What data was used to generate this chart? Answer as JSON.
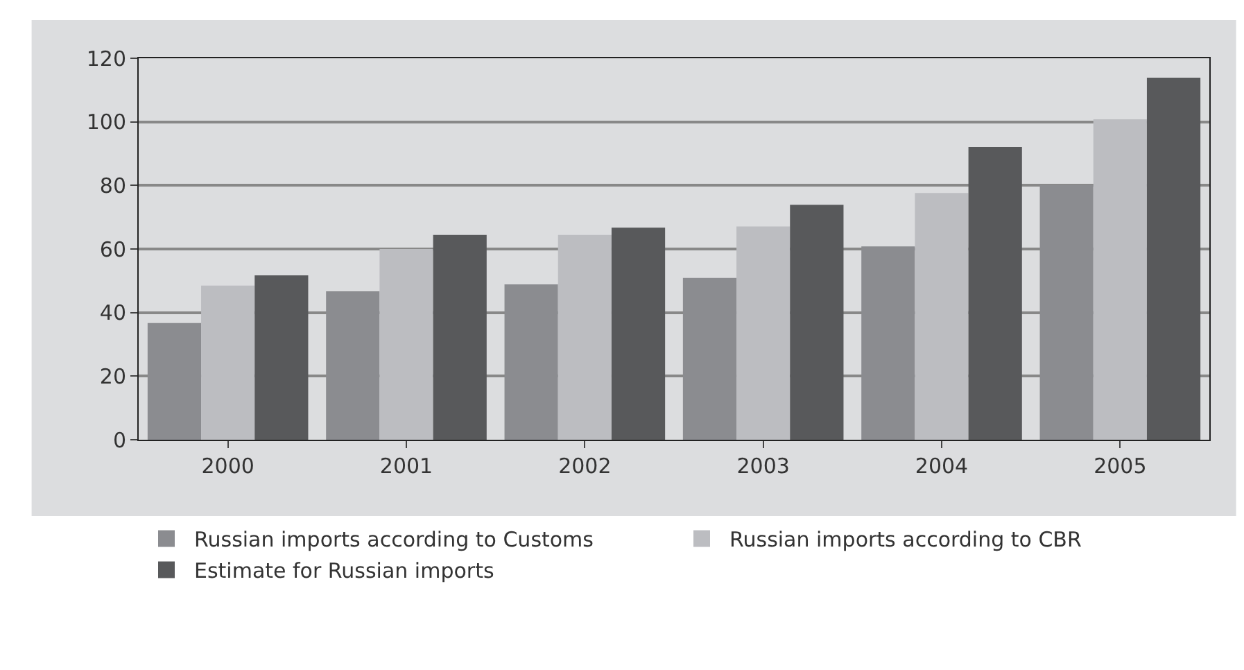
{
  "chart_data": {
    "type": "bar",
    "categories": [
      "2000",
      "2001",
      "2002",
      "2003",
      "2004",
      "2005"
    ],
    "series": [
      {
        "name": "Russian imports according to Customs",
        "color": "#8b8c90",
        "values": [
          36.7,
          46.7,
          48.9,
          50.9,
          60.8,
          80.2
        ]
      },
      {
        "name": "Russian imports according to CBR",
        "color": "#bcbdc1",
        "values": [
          48.5,
          60.0,
          64.4,
          67.1,
          77.6,
          100.8
        ]
      },
      {
        "name": "Estimate for Russian imports",
        "color": "#58595b",
        "values": [
          51.7,
          64.4,
          66.7,
          73.9,
          92.1,
          113.9
        ]
      }
    ],
    "ylim": [
      0,
      120
    ],
    "yticks": [
      0,
      20,
      40,
      60,
      80,
      100,
      120
    ],
    "grid": "y",
    "legend": "bottom"
  }
}
